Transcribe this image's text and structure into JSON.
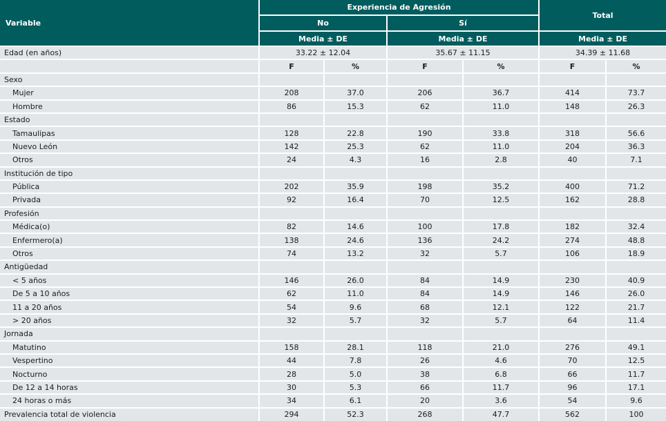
{
  "colors": {
    "header_bg": "#005C5D",
    "header_text": "#FFFFFF",
    "row_bg": "#E2E6E8",
    "body_text": "#1B1B1B",
    "divider": "#FFFFFF"
  },
  "header": {
    "variable": "Variable",
    "experiencia": "Experiencia de Agresión",
    "no": "No",
    "si": "Sí",
    "total": "Total",
    "media_no": "Media ± DE",
    "media_si": "Media ± DE",
    "media_total": "Media ± DE",
    "f": "F",
    "pct": "%"
  },
  "edad": {
    "label": "Edad (en años)",
    "no": "33.22 ± 12.04",
    "si": "35.67 ± 11.15",
    "total": "34.39 ± 11.68"
  },
  "rows": [
    {
      "type": "category",
      "label": "Sexo"
    },
    {
      "type": "item",
      "label": "Mujer",
      "values": [
        "208",
        "37.0",
        "206",
        "36.7",
        "414",
        "73.7"
      ]
    },
    {
      "type": "item",
      "label": "Hombre",
      "values": [
        "86",
        "15.3",
        "62",
        "11.0",
        "148",
        "26.3"
      ]
    },
    {
      "type": "category",
      "label": "Estado"
    },
    {
      "type": "item",
      "label": "Tamaulipas",
      "values": [
        "128",
        "22.8",
        "190",
        "33.8",
        "318",
        "56.6"
      ]
    },
    {
      "type": "item",
      "label": "Nuevo León",
      "values": [
        "142",
        "25.3",
        "62",
        "11.0",
        "204",
        "36.3"
      ]
    },
    {
      "type": "item",
      "label": "Otros",
      "values": [
        "24",
        "4.3",
        "16",
        "2.8",
        "40",
        "7.1"
      ]
    },
    {
      "type": "category",
      "label": "Institución de tipo"
    },
    {
      "type": "item",
      "label": "Pública",
      "values": [
        "202",
        "35.9",
        "198",
        "35.2",
        "400",
        "71.2"
      ]
    },
    {
      "type": "item",
      "label": "Privada",
      "values": [
        "92",
        "16.4",
        "70",
        "12.5",
        "162",
        "28.8"
      ]
    },
    {
      "type": "category",
      "label": "Profesión"
    },
    {
      "type": "item",
      "label": "Médica(o)",
      "values": [
        "82",
        "14.6",
        "100",
        "17.8",
        "182",
        "32.4"
      ]
    },
    {
      "type": "item",
      "label": "Enfermero(a)",
      "values": [
        "138",
        "24.6",
        "136",
        "24.2",
        "274",
        "48.8"
      ]
    },
    {
      "type": "item",
      "label": "Otros",
      "values": [
        "74",
        "13.2",
        "32",
        "5.7",
        "106",
        "18.9"
      ]
    },
    {
      "type": "category",
      "label": "Antigüedad"
    },
    {
      "type": "item",
      "label": "< 5 años",
      "values": [
        "146",
        "26.0",
        "84",
        "14.9",
        "230",
        "40.9"
      ]
    },
    {
      "type": "item",
      "label": "De 5 a 10 años",
      "values": [
        "62",
        "11.0",
        "84",
        "14.9",
        "146",
        "26.0"
      ]
    },
    {
      "type": "item",
      "label": "11 a 20 años",
      "values": [
        "54",
        "9.6",
        "68",
        "12.1",
        "122",
        "21.7"
      ]
    },
    {
      "type": "item",
      "label": "> 20 años",
      "values": [
        "32",
        "5.7",
        "32",
        "5.7",
        "64",
        "11.4"
      ]
    },
    {
      "type": "category",
      "label": "Jornada"
    },
    {
      "type": "item",
      "label": "Matutino",
      "values": [
        "158",
        "28.1",
        "118",
        "21.0",
        "276",
        "49.1"
      ]
    },
    {
      "type": "item",
      "label": "Vespertino",
      "values": [
        "44",
        "7.8",
        "26",
        "4.6",
        "70",
        "12.5"
      ]
    },
    {
      "type": "item",
      "label": "Nocturno",
      "values": [
        "28",
        "5.0",
        "38",
        "6.8",
        "66",
        "11.7"
      ]
    },
    {
      "type": "item",
      "label": "De 12 a 14 horas",
      "values": [
        "30",
        "5.3",
        "66",
        "11.7",
        "96",
        "17.1"
      ]
    },
    {
      "type": "item",
      "label": "24 horas o más",
      "values": [
        "34",
        "6.1",
        "20",
        "3.6",
        "54",
        "9.6"
      ]
    },
    {
      "type": "summary",
      "label": "Prevalencia total de violencia",
      "values": [
        "294",
        "52.3",
        "268",
        "47.7",
        "562",
        "100"
      ]
    }
  ]
}
